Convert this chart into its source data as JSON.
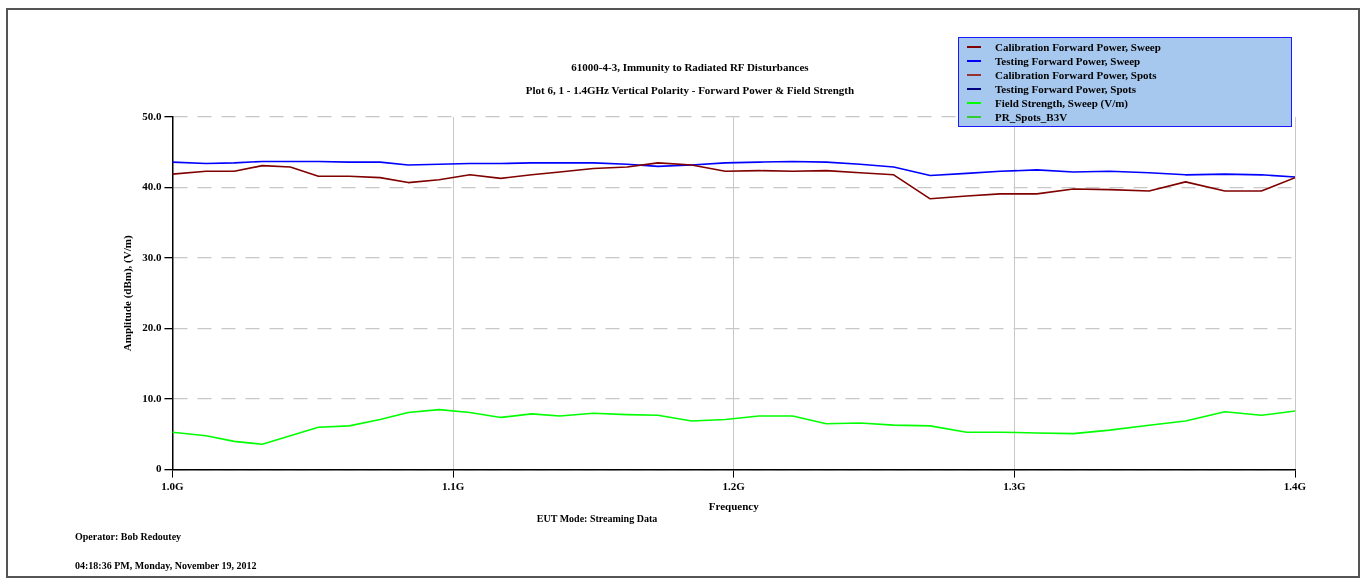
{
  "chart_data": {
    "type": "line",
    "title": "61000-4-3, Immunity to Radiated RF Disturbances",
    "subtitle": "Plot 6, 1 - 1.4GHz Vertical Polarity - Forward Power & Field Strength",
    "xlabel": "Frequency",
    "ylabel": "Amplitude (dBm), (V/m)",
    "annotations": [
      "EUT Mode: Streaming Data",
      "Operator: Bob Redoutey",
      "04:18:36 PM, Monday, November 19, 2012"
    ],
    "x": [
      1.0,
      1.012,
      1.022,
      1.032,
      1.042,
      1.052,
      1.063,
      1.074,
      1.084,
      1.095,
      1.106,
      1.117,
      1.128,
      1.138,
      1.15,
      1.162,
      1.173,
      1.185,
      1.197,
      1.209,
      1.221,
      1.233,
      1.245,
      1.257,
      1.27,
      1.283,
      1.295,
      1.308,
      1.321,
      1.334,
      1.348,
      1.361,
      1.375,
      1.388,
      1.4
    ],
    "series": [
      {
        "name": "Calibration Forward Power, Sweep",
        "color": "#800000",
        "values": [
          41.9,
          42.3,
          42.3,
          43.1,
          42.9,
          41.6,
          41.6,
          41.4,
          40.7,
          41.1,
          41.8,
          41.3,
          41.8,
          42.2,
          42.7,
          42.9,
          43.5,
          43.2,
          42.3,
          42.4,
          42.3,
          42.4,
          42.1,
          41.8,
          38.4,
          38.8,
          39.1,
          39.1,
          39.8,
          39.7,
          39.5,
          40.8,
          39.5,
          39.5,
          41.4
        ]
      },
      {
        "name": "Testing Forward Power, Sweep",
        "color": "#0000ff",
        "values": [
          43.6,
          43.4,
          43.5,
          43.7,
          43.7,
          43.7,
          43.6,
          43.6,
          43.2,
          43.3,
          43.4,
          43.4,
          43.5,
          43.5,
          43.5,
          43.3,
          43.0,
          43.2,
          43.5,
          43.6,
          43.7,
          43.6,
          43.3,
          42.9,
          41.7,
          42.0,
          42.3,
          42.5,
          42.2,
          42.3,
          42.1,
          41.8,
          41.9,
          41.8,
          41.5
        ]
      },
      {
        "name": "Calibration Forward Power, Spots",
        "color": "#993333",
        "values": [
          null,
          null,
          null,
          null,
          null,
          null,
          null,
          null,
          null,
          null,
          null,
          null,
          null,
          null,
          null,
          null,
          null,
          null,
          null,
          null,
          null,
          null,
          null,
          null,
          null,
          null,
          null,
          null,
          null,
          null,
          null,
          null,
          null,
          null,
          null
        ]
      },
      {
        "name": "Testing Forward Power, Spots",
        "color": "#000080",
        "values": [
          null,
          null,
          null,
          null,
          null,
          null,
          null,
          null,
          null,
          null,
          null,
          null,
          null,
          null,
          null,
          null,
          null,
          null,
          null,
          null,
          null,
          null,
          null,
          null,
          null,
          null,
          null,
          null,
          null,
          null,
          null,
          null,
          null,
          null,
          null
        ]
      },
      {
        "name": "Field Strength, Sweep (V/m)",
        "color": "#00ff00",
        "values": [
          5.3,
          4.8,
          4.0,
          3.6,
          4.8,
          6.0,
          6.2,
          7.1,
          8.1,
          8.5,
          8.1,
          7.4,
          7.9,
          7.6,
          8.0,
          7.8,
          7.7,
          6.9,
          7.1,
          7.6,
          7.6,
          6.5,
          6.6,
          6.3,
          6.2,
          5.3,
          5.3,
          5.2,
          5.1,
          5.6,
          6.3,
          6.9,
          8.2,
          7.7,
          8.3
        ]
      },
      {
        "name": "PR_Spots_B3V",
        "color": "#33cc33",
        "values": [
          null,
          null,
          null,
          null,
          null,
          null,
          null,
          null,
          null,
          null,
          null,
          null,
          null,
          null,
          null,
          null,
          null,
          null,
          null,
          null,
          null,
          null,
          null,
          null,
          null,
          null,
          null,
          null,
          null,
          null,
          null,
          null,
          null,
          null,
          null
        ]
      }
    ],
    "xlim": [
      1.0,
      1.4
    ],
    "xticks": [
      {
        "value": 1.0,
        "label": "1.0G"
      },
      {
        "value": 1.1,
        "label": "1.1G"
      },
      {
        "value": 1.2,
        "label": "1.2G"
      },
      {
        "value": 1.3,
        "label": "1.3G"
      },
      {
        "value": 1.4,
        "label": "1.4G"
      }
    ],
    "ylim": [
      0,
      50
    ],
    "yticks": [
      0,
      {
        "value": 10,
        "label": "10.0"
      },
      {
        "value": 20,
        "label": "20.0"
      },
      {
        "value": 30,
        "label": "30.0"
      },
      {
        "value": 40,
        "label": "40.0"
      },
      {
        "value": 50,
        "label": "50.0"
      }
    ],
    "grid": true,
    "legend": "top right",
    "marker": "none",
    "line_style": "solid"
  }
}
